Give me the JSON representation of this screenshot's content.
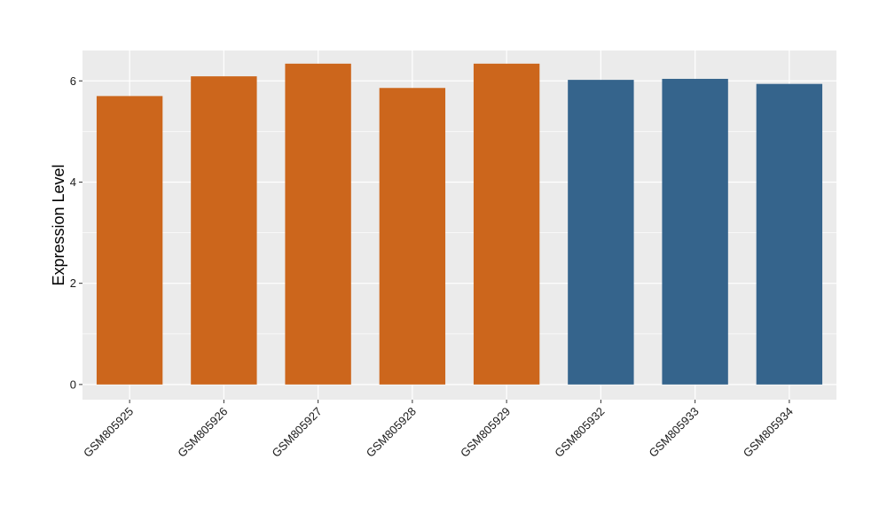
{
  "chart_data": {
    "type": "bar",
    "title": "",
    "xlabel": "",
    "ylabel": "Expression Level",
    "ylim": [
      -0.3,
      6.6
    ],
    "yticks": [
      0,
      2,
      4,
      6
    ],
    "grid": true,
    "background": "#ebebeb",
    "gridline_color": "#ffffff",
    "categories": [
      "GSM805925",
      "GSM805926",
      "GSM805927",
      "GSM805928",
      "GSM805929",
      "GSM805932",
      "GSM805933",
      "GSM805934"
    ],
    "values": [
      5.7,
      6.09,
      6.34,
      5.86,
      6.34,
      6.02,
      6.04,
      5.94
    ],
    "bar_colors": [
      "#cc661c",
      "#cc661c",
      "#cc661c",
      "#cc661c",
      "#cc661c",
      "#35648c",
      "#35648c",
      "#35648c"
    ],
    "groups": [
      {
        "color": "#cc661c",
        "categories": [
          "GSM805925",
          "GSM805926",
          "GSM805927",
          "GSM805928",
          "GSM805929"
        ]
      },
      {
        "color": "#35648c",
        "categories": [
          "GSM805932",
          "GSM805933",
          "GSM805934"
        ]
      }
    ]
  }
}
